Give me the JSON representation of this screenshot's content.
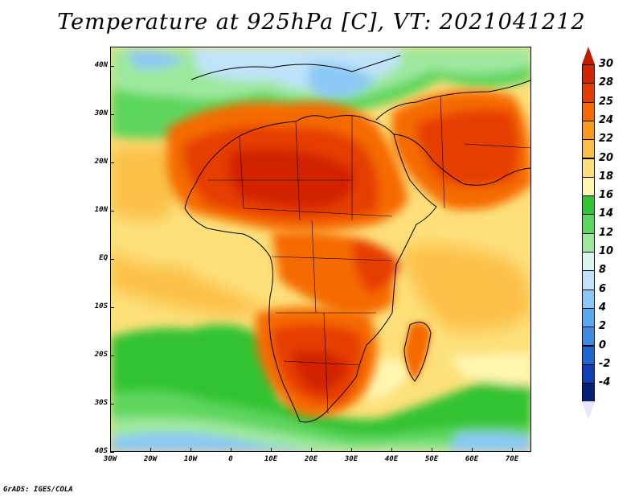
{
  "title": "Temperature at 925hPa [C], VT: 2021041212",
  "credit": "GrADS: IGES/COLA",
  "map": {
    "projection": "lat-lon",
    "lon_range": [
      -30,
      75
    ],
    "lat_range": [
      -40,
      45
    ],
    "lat_labels": [
      "40N",
      "30N",
      "20N",
      "10N",
      "EQ",
      "10S",
      "20S",
      "30S",
      "40S"
    ],
    "lon_labels": [
      "30W",
      "20W",
      "10W",
      "0",
      "10E",
      "20E",
      "30E",
      "40E",
      "50E",
      "60E",
      "70E"
    ],
    "regions": [
      {
        "name": "saharan-heat-core",
        "value_c": 28
      },
      {
        "name": "southern-africa-heat-core",
        "value_c": 28
      },
      {
        "name": "arabian-heat",
        "value_c": 28
      },
      {
        "name": "southern-atlantic-ocean",
        "value_c": 16
      },
      {
        "name": "southern-ocean",
        "value_c": 10
      },
      {
        "name": "mediterranean",
        "value_c": 12
      }
    ]
  },
  "colorbar": {
    "levels": [
      "30",
      "28",
      "25",
      "24",
      "22",
      "20",
      "18",
      "16",
      "14",
      "12",
      "10",
      "8",
      "6",
      "4",
      "2",
      "0",
      "-2",
      "-4"
    ],
    "colors": [
      "#d32400",
      "#e63c00",
      "#f56a00",
      "#f99a1a",
      "#fbbf47",
      "#fde07a",
      "#fff6b0",
      "#33c333",
      "#5dd65d",
      "#9ee89e",
      "#d8f5f0",
      "#bfe3fa",
      "#8cc8f5",
      "#5aa9ee",
      "#3d8be3",
      "#1f66d4",
      "#0f3fb5",
      "#081f7a"
    ],
    "overflow_high": "#c01a00",
    "overflow_low": "#e6e6ff"
  }
}
